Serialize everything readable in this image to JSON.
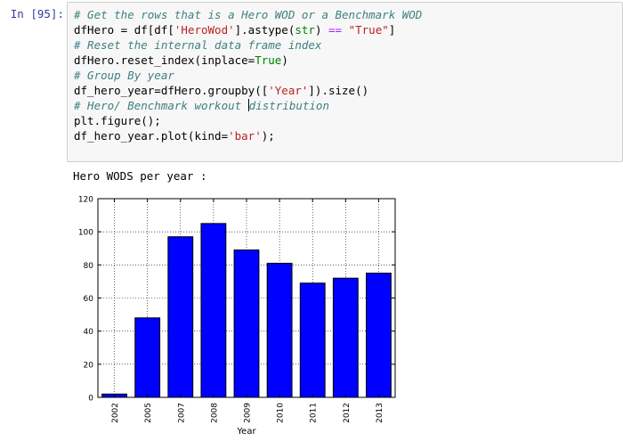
{
  "cell": {
    "prompt": "In [95]:",
    "code_lines": [
      [
        {
          "t": "# Get the rows that is a Hero WOD or a Benchmark WOD",
          "c": "cm"
        }
      ],
      [
        {
          "t": "dfHero = df[df["
        },
        {
          "t": "'HeroWod'",
          "c": "str"
        },
        {
          "t": "].astype("
        },
        {
          "t": "str",
          "c": "kw"
        },
        {
          "t": ") "
        },
        {
          "t": "==",
          "c": "op"
        },
        {
          "t": " "
        },
        {
          "t": "\"True\"",
          "c": "str"
        },
        {
          "t": "]"
        }
      ],
      [
        {
          "t": "# Reset the internal data frame index",
          "c": "cm"
        }
      ],
      [
        {
          "t": "dfHero.reset_index(inplace="
        },
        {
          "t": "True",
          "c": "kw"
        },
        {
          "t": ")"
        }
      ],
      [
        {
          "t": "# Group By year",
          "c": "cm"
        }
      ],
      [
        {
          "t": "df_hero_year=dfHero.groupby(["
        },
        {
          "t": "'Year'",
          "c": "str"
        },
        {
          "t": "]).size()"
        }
      ],
      [
        {
          "t": "# Hero/ Benchmark workout ",
          "c": "cm"
        },
        {
          "cursor": true
        },
        {
          "t": "distribution",
          "c": "cm"
        }
      ],
      [
        {
          "t": "plt.figure();"
        }
      ],
      [
        {
          "t": "df_hero_year.plot(kind="
        },
        {
          "t": "'bar'",
          "c": "str"
        },
        {
          "t": ");"
        }
      ]
    ]
  },
  "output": {
    "text": "Hero WODS per year :"
  },
  "chart_data": {
    "type": "bar",
    "categories": [
      "2002",
      "2005",
      "2007",
      "2008",
      "2009",
      "2010",
      "2011",
      "2012",
      "2013"
    ],
    "values": [
      2,
      48,
      97,
      105,
      89,
      81,
      69,
      72,
      75
    ],
    "title": "",
    "xlabel": "Year",
    "ylabel": "",
    "ylim": [
      0,
      120
    ],
    "yticks": [
      0,
      20,
      40,
      60,
      80,
      100,
      120
    ],
    "grid": true,
    "bar_color": "#0000ff",
    "bar_edge_color": "#000000"
  }
}
